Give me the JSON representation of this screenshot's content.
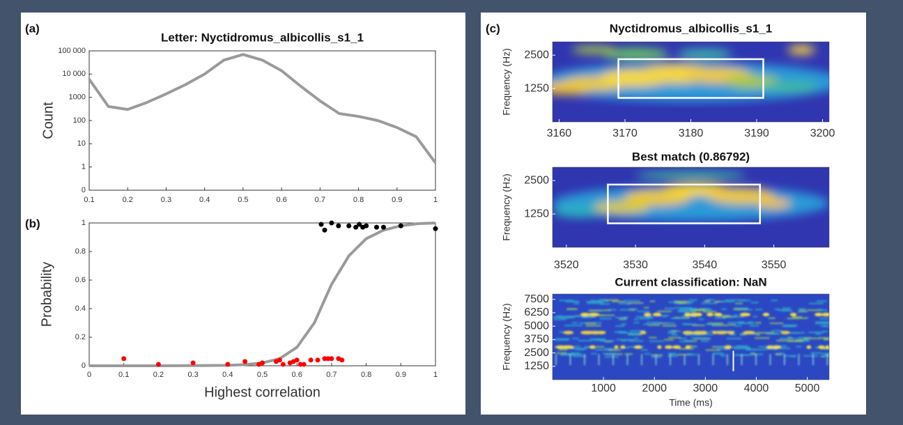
{
  "chart_data": [
    {
      "type": "line",
      "panel_label": "(a)",
      "title": "Letter: Nyctidromus_albicollis_s1_1",
      "ylabel": "Count",
      "log_y": true,
      "x": [
        0.1,
        0.15,
        0.2,
        0.25,
        0.3,
        0.35,
        0.4,
        0.45,
        0.5,
        0.55,
        0.6,
        0.65,
        0.7,
        0.75,
        0.8,
        0.85,
        0.9,
        0.95,
        1
      ],
      "series": [
        {
          "color": "#9a9a9a",
          "values": [
            6000,
            400,
            300,
            600,
            1400,
            3500,
            10000,
            40000,
            70000,
            40000,
            14000,
            3000,
            700,
            200,
            150,
            100,
            50,
            20,
            1.5
          ]
        }
      ],
      "xlim": [
        0.1,
        1
      ],
      "xticks": [
        0.1,
        0.2,
        0.3,
        0.4,
        0.5,
        0.6,
        0.7,
        0.8,
        0.9,
        1
      ],
      "ylim": [
        0.1,
        100000
      ],
      "yticks": [
        {
          "value": 0.1,
          "label": "0"
        },
        1,
        10,
        100,
        1000,
        {
          "value": 10000,
          "label": "10 000"
        },
        {
          "value": 100000,
          "label": "100 000"
        }
      ]
    },
    {
      "type": "scatter",
      "panel_label": "(b)",
      "ylabel": "Probability",
      "xlabel": "Highest correlation",
      "series": [
        {
          "color": "#000000",
          "x": [
            0.67,
            0.68,
            0.7,
            0.72,
            0.75,
            0.77,
            0.78,
            0.79,
            0.8,
            0.83,
            0.85,
            0.9,
            1
          ],
          "values": [
            0.99,
            0.95,
            1,
            0.98,
            0.98,
            0.97,
            0.99,
            0.97,
            0.98,
            0.97,
            0.97,
            0.98,
            0.96
          ]
        },
        {
          "color": "#ff0000",
          "x": [
            0.1,
            0.2,
            0.3,
            0.4,
            0.45,
            0.49,
            0.5,
            0.54,
            0.55,
            0.56,
            0.58,
            0.59,
            0.6,
            0.61,
            0.62,
            0.64,
            0.66,
            0.68,
            0.69,
            0.7,
            0.72,
            0.73
          ],
          "values": [
            0.05,
            0.01,
            0.02,
            0.01,
            0.03,
            0.01,
            0.02,
            0.03,
            0.04,
            0.01,
            0.02,
            0.03,
            0.04,
            0.01,
            0.01,
            0.04,
            0.04,
            0.05,
            0.05,
            0.05,
            0.05,
            0.04
          ]
        }
      ],
      "fit": {
        "color": "#9a9a9a",
        "x": [
          0,
          0.1,
          0.2,
          0.3,
          0.4,
          0.45,
          0.5,
          0.55,
          0.6,
          0.65,
          0.7,
          0.75,
          0.8,
          0.85,
          0.9,
          0.95,
          1
        ],
        "values": [
          0,
          0,
          0,
          0.001,
          0.003,
          0.008,
          0.02,
          0.05,
          0.13,
          0.3,
          0.57,
          0.77,
          0.89,
          0.95,
          0.98,
          0.995,
          1
        ]
      },
      "xlim": [
        0,
        1
      ],
      "xticks": [
        0,
        0.1,
        0.2,
        0.3,
        0.4,
        0.5,
        0.6,
        0.7,
        0.8,
        0.9,
        1
      ],
      "ylim": [
        0,
        1
      ],
      "yticks": [
        0,
        0.2,
        0.4,
        0.6,
        0.8,
        1
      ]
    },
    {
      "type": "spectrogram",
      "panel_label": "(c)",
      "title": "Nyctidromus_albicollis_s1_1",
      "ylabel": "Frequency (Hz)",
      "xlim": [
        3159,
        3201
      ],
      "xticks": [
        3160,
        3170,
        3180,
        3190,
        3200
      ],
      "ylim": [
        0,
        3000
      ],
      "yticks": [
        1250,
        2500
      ],
      "box": {
        "x": [
          3169,
          3191
        ],
        "y": [
          900,
          2350
        ]
      }
    },
    {
      "type": "spectrogram",
      "title": "Best match (0.86792)",
      "ylabel": "Frequency (Hz)",
      "xlim": [
        3518,
        3558
      ],
      "xticks": [
        3520,
        3530,
        3540,
        3550
      ],
      "ylim": [
        0,
        3000
      ],
      "yticks": [
        1250,
        2500
      ],
      "box": {
        "x": [
          3526,
          3548
        ],
        "y": [
          900,
          2350
        ]
      }
    },
    {
      "type": "spectrogram",
      "title": "Current classification: NaN",
      "ylabel": "Frequency (Hz)",
      "xlabel": "Time (ms)",
      "xlim": [
        0,
        5430
      ],
      "xticks": [
        1000,
        2000,
        3000,
        4000,
        5000
      ],
      "ylim": [
        0,
        8000
      ],
      "yticks": [
        1250,
        2500,
        3750,
        5000,
        6250,
        7500
      ],
      "cursor": {
        "x": 3550,
        "y": [
          800,
          2700
        ]
      }
    }
  ]
}
